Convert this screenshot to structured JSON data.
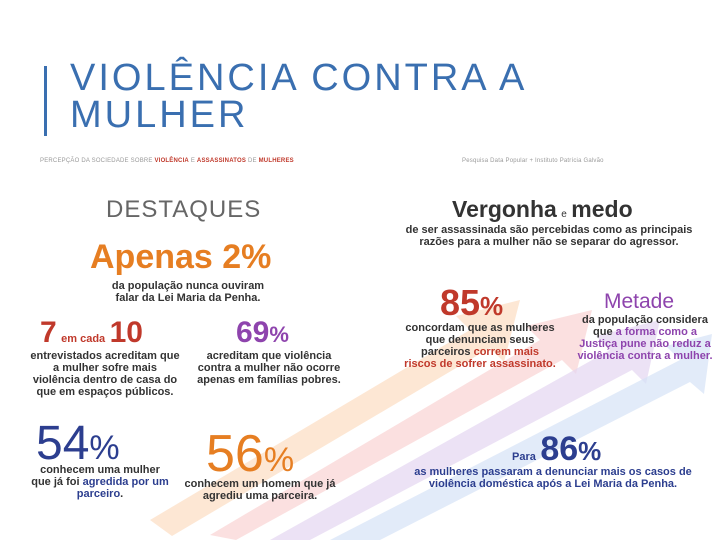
{
  "title": "VIOLÊNCIA CONTRA A\nMULHER",
  "subtitle_left": [
    "PERCEPÇÃO DA SOCIEDADE SOBRE ",
    "VIOLÊNCIA",
    " E ",
    "ASSASSINATOS",
    " DE ",
    "MULHERES"
  ],
  "subtitle_right": "Pesquisa Data Popular + Instituto Patrícia Galvão",
  "destaques": "DESTAQUES",
  "apenas": {
    "label": "Apenas 2%",
    "text": "da população nunca ouviram falar da Lei Maria da Penha."
  },
  "sete": {
    "num1": "7",
    "mid": "em cada",
    "num2": "10",
    "text": "entrevistados acreditam que a mulher sofre mais violência dentro de casa do que em espaços públicos."
  },
  "p69": {
    "num": "69",
    "pct": "%",
    "text": "acreditam que violência contra a mulher não ocorre apenas em famílias pobres."
  },
  "p54": {
    "num": "54",
    "pct": "%",
    "text_a": "conhecem uma mulher que já foi ",
    "text_hl": "agredida por um parceiro",
    "text_b": "."
  },
  "p56": {
    "num": "56",
    "pct": "%",
    "text": "conhecem um homem que já agrediu uma parceira."
  },
  "vergonha": {
    "w1": "Vergonha",
    "e": "e",
    "w2": "medo",
    "text": "de ser assassinada são percebidas como as principais razões para a mulher não se separar do agressor."
  },
  "p85": {
    "num": "85",
    "pct": "%",
    "text": "concordam que as mulheres que denunciam seus parceiros",
    "hl": "correm mais riscos de sofrer assassinato."
  },
  "metade": {
    "label": "Metade",
    "text": "da população considera que",
    "hl": "a forma como a Justiça pune não reduz a violência contra a mulher."
  },
  "p86": {
    "para": "Para",
    "num": "86",
    "pct": "%",
    "text": "as mulheres passaram a denunciar mais os casos de violência doméstica após a Lei Maria da Penha."
  },
  "colors": {
    "title": "#3a6fb0",
    "orange": "#e67e22",
    "red": "#c0392b",
    "purple": "#8e44ad",
    "blue": "#2c3e8f"
  }
}
